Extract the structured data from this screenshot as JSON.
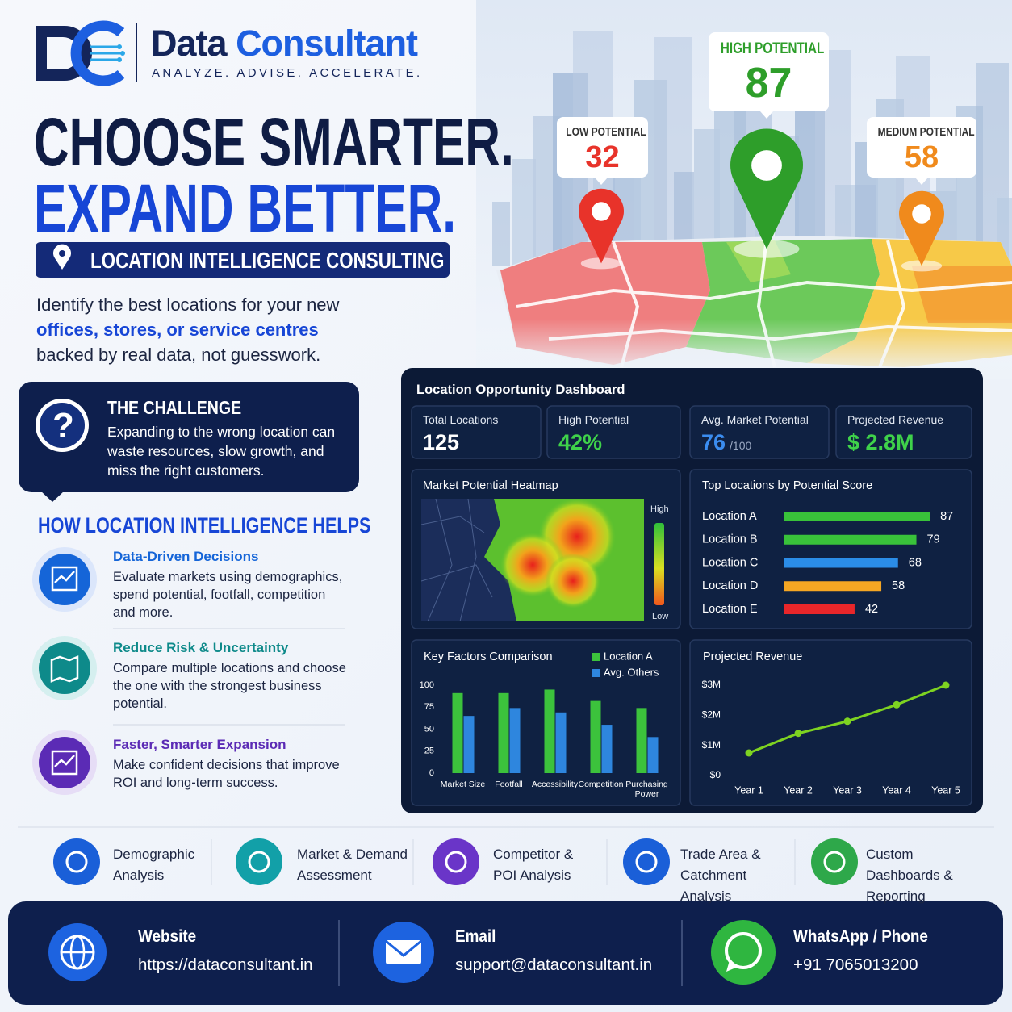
{
  "brand": {
    "name_first": "Data",
    "name_second": "Consultant",
    "tagline": "ANALYZE. ADVISE. ACCELERATE."
  },
  "headline": {
    "line1": "CHOOSE SMARTER.",
    "line2": "EXPAND BETTER."
  },
  "badge": "LOCATION INTELLIGENCE CONSULTING",
  "intro": {
    "before": "Identify the best locations for your new",
    "highlight": "offices, stores, or service centres",
    "after": "backed by real data, not guesswork."
  },
  "map_pins": [
    {
      "label": "LOW POTENTIAL",
      "value": 32,
      "color": "#e8332a"
    },
    {
      "label": "HIGH POTENTIAL",
      "value": 87,
      "color": "#2e9e2a"
    },
    {
      "label": "MEDIUM POTENTIAL",
      "value": 58,
      "color": "#f08a1c"
    }
  ],
  "challenge": {
    "title": "THE CHALLENGE",
    "text": "Expanding to the wrong location can waste resources, slow growth, and miss the right customers."
  },
  "helps": {
    "title": "HOW LOCATION INTELLIGENCE HELPS",
    "items": [
      {
        "title": "Data-Driven Decisions",
        "text": "Evaluate markets using demographics, spend potential, footfall, competition and more.",
        "color": "#1565d8"
      },
      {
        "title": "Reduce Risk & Uncertainty",
        "text": "Compare multiple locations and choose the one with the strongest business potential.",
        "color": "#0e8a8a"
      },
      {
        "title": "Faster, Smarter Expansion",
        "text": "Make confident decisions that improve ROI and long-term success.",
        "color": "#5b2bb5"
      }
    ]
  },
  "dashboard": {
    "title": "Location Opportunity Dashboard",
    "kpis": [
      {
        "label": "Total Locations",
        "value": "125",
        "color": "#ffffff"
      },
      {
        "label": "High Potential",
        "value": "42%",
        "color": "#3fd24a"
      },
      {
        "label": "Avg. Market Potential",
        "value": "76",
        "suffix": "/100",
        "color": "#3b8df0"
      },
      {
        "label": "Projected Revenue",
        "value": "$ 2.8M",
        "color": "#3fd24a"
      }
    ],
    "heatmap": {
      "title": "Market Potential Heatmap",
      "high_label": "High",
      "low_label": "Low"
    },
    "top_locations": {
      "type": "bar",
      "orientation": "horizontal",
      "title": "Top Locations by Potential Score",
      "categories": [
        "Location A",
        "Location B",
        "Location C",
        "Location D",
        "Location E"
      ],
      "values": [
        87,
        79,
        68,
        58,
        42
      ],
      "colors": [
        "#39c23a",
        "#39c23a",
        "#2b8de8",
        "#f5a623",
        "#e8262a"
      ],
      "xlim": [
        0,
        100
      ]
    },
    "key_factors": {
      "type": "bar",
      "title": "Key Factors Comparison",
      "legend": "top-right",
      "categories": [
        "Market Size",
        "Footfall",
        "Accessibility",
        "Competition",
        "Purchasing Power"
      ],
      "series": [
        {
          "name": "Location A",
          "color": "#3cc23c",
          "values": [
            91,
            91,
            95,
            82,
            74
          ]
        },
        {
          "name": "Avg. Others",
          "color": "#2e86de",
          "values": [
            65,
            74,
            69,
            55,
            41
          ]
        }
      ],
      "ylim": [
        0,
        100
      ],
      "yticks": [
        0,
        25,
        50,
        75,
        100
      ]
    },
    "revenue": {
      "type": "line",
      "title": "Projected Revenue",
      "categories": [
        "Year 1",
        "Year 2",
        "Year 3",
        "Year 4",
        "Year 5"
      ],
      "values": [
        750000,
        1400000,
        1800000,
        2350000,
        3000000
      ],
      "color": "#7ed321",
      "ylim": [
        0,
        3000000
      ],
      "yticks": [
        {
          "value": 0,
          "label": "$0"
        },
        {
          "value": 1000000,
          "label": "$1M"
        },
        {
          "value": 2000000,
          "label": "$2M"
        },
        {
          "value": 3000000,
          "label": "$3M"
        }
      ]
    }
  },
  "services": [
    {
      "label": "Demographic Analysis",
      "color": "#1a5fd8"
    },
    {
      "label": "Market & Demand Assessment",
      "color": "#12a0a8"
    },
    {
      "label": "Competitor & POI Analysis",
      "color": "#6a35c8"
    },
    {
      "label": "Trade Area & Catchment Analysis",
      "color": "#1a5fd8"
    },
    {
      "label": "Custom Dashboards & Reporting",
      "color": "#2ea84a"
    }
  ],
  "contact": [
    {
      "label": "Website",
      "value": "https://dataconsultant.in"
    },
    {
      "label": "Email",
      "value": "support@dataconsultant.in"
    },
    {
      "label": "WhatsApp / Phone",
      "value": "+91 7065013200"
    }
  ]
}
